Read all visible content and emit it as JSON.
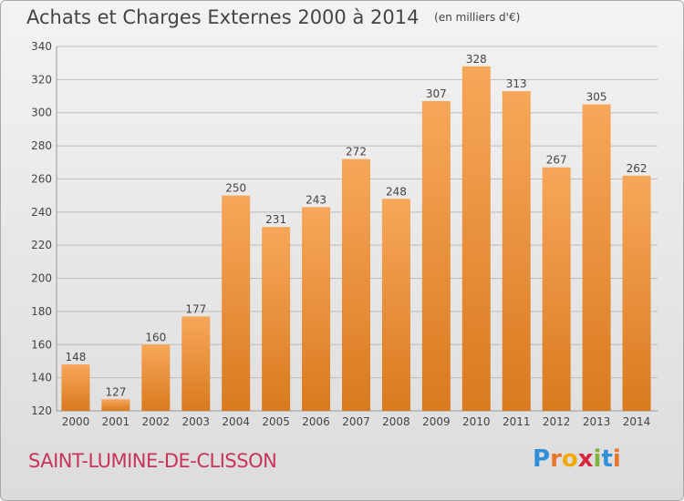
{
  "header": {
    "title": "Achats et Charges Externes 2000 à 2014",
    "unit": "(en milliers d'€)"
  },
  "footer": {
    "commune": "SAINT-LUMINE-DE-CLISSON",
    "logo_letters": [
      "P",
      "r",
      "o",
      "x",
      "i",
      "t",
      "i"
    ],
    "logo_colors": [
      "#2f8fd8",
      "#e8762a",
      "#f2a900",
      "#d8263d",
      "#7fb43a",
      "#2f8fd8",
      "#e8762a"
    ]
  },
  "colors": {
    "bar_top": "#f7a75a",
    "bar_bottom": "#d97a1e",
    "gridline": "#bdbdbd",
    "axis_text": "#444444"
  },
  "chart_data": {
    "type": "bar",
    "categories": [
      "2000",
      "2001",
      "2002",
      "2003",
      "2004",
      "2005",
      "2006",
      "2007",
      "2008",
      "2009",
      "2010",
      "2011",
      "2012",
      "2013",
      "2014"
    ],
    "values": [
      148,
      127,
      160,
      177,
      250,
      231,
      243,
      272,
      248,
      307,
      328,
      313,
      267,
      305,
      262
    ],
    "ylim": [
      120,
      340
    ],
    "yticks": [
      120,
      140,
      160,
      180,
      200,
      220,
      240,
      260,
      280,
      300,
      320,
      340
    ],
    "grid": true,
    "data_labels": true
  }
}
